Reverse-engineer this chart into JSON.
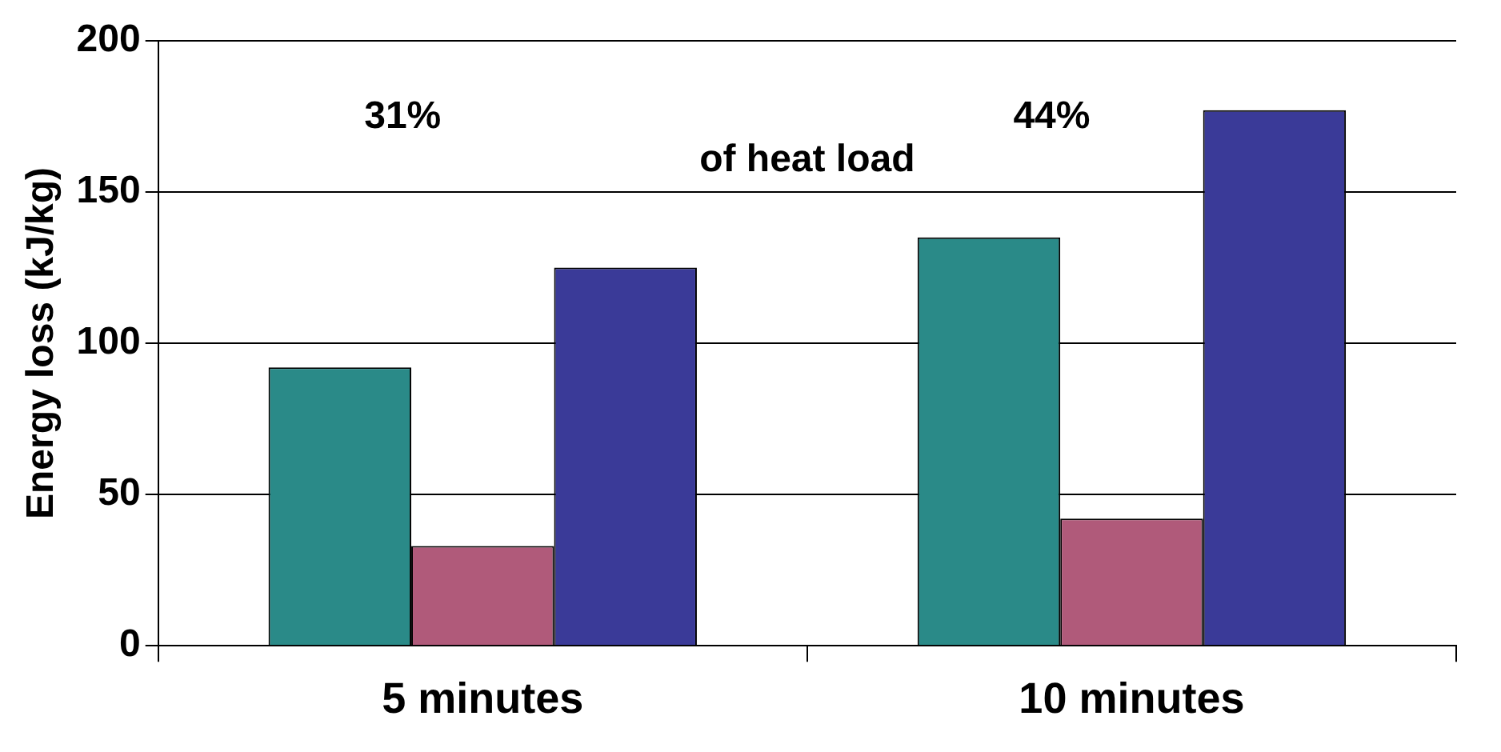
{
  "chart_data": {
    "type": "bar",
    "ylabel": "Energy loss (kJ/kg)",
    "categories": [
      "5 minutes",
      "10 minutes"
    ],
    "series": [
      {
        "color": "#2a8a88",
        "values": [
          92,
          135
        ]
      },
      {
        "color": "#b05a7a",
        "values": [
          33,
          42
        ]
      },
      {
        "color": "#3a3a98",
        "values": [
          125,
          177
        ]
      }
    ],
    "ylim": [
      0,
      200
    ],
    "yticks": [
      0,
      50,
      100,
      150,
      200
    ],
    "grid": "y",
    "annotations": [
      "31%",
      "44%",
      "of heat load"
    ]
  }
}
